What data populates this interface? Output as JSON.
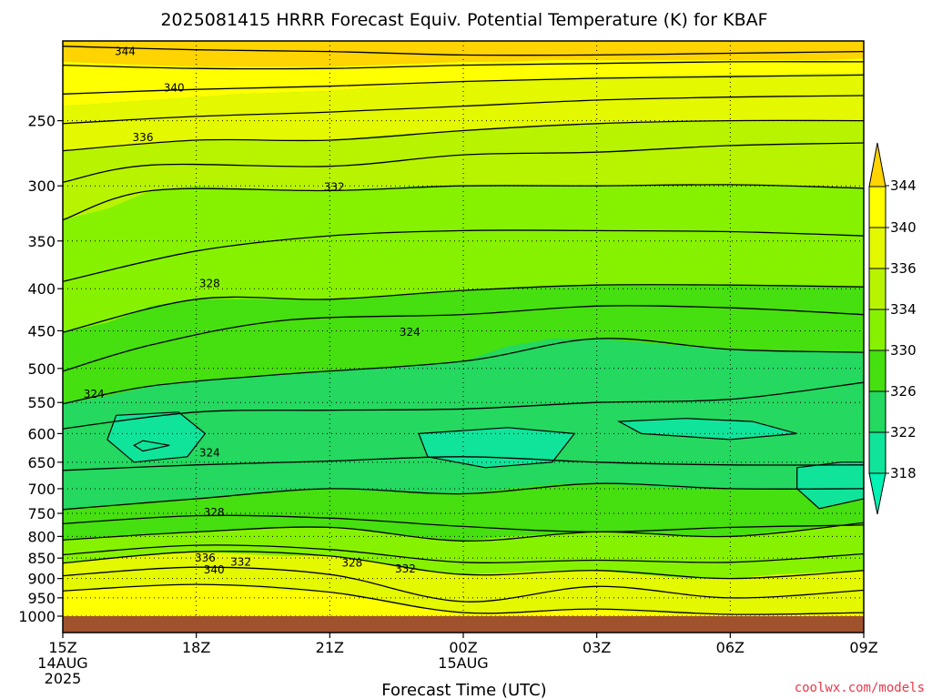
{
  "chart_data": {
    "type": "heatmap",
    "title": "2025081415 HRRR Forecast Equiv. Potential Temperature (K) for KBAF",
    "xlabel": "Forecast Time (UTC)",
    "credit": "coolwx.com/models",
    "x_ticks": [
      {
        "hour": 0,
        "lines": [
          "15Z",
          "14AUG",
          "2025"
        ]
      },
      {
        "hour": 3,
        "lines": [
          "18Z"
        ]
      },
      {
        "hour": 6,
        "lines": [
          "21Z"
        ]
      },
      {
        "hour": 9,
        "lines": [
          "00Z",
          "15AUG"
        ]
      },
      {
        "hour": 12,
        "lines": [
          "03Z"
        ]
      },
      {
        "hour": 15,
        "lines": [
          "06Z"
        ]
      },
      {
        "hour": 18,
        "lines": [
          "09Z"
        ]
      }
    ],
    "xlim_hours": [
      0,
      18
    ],
    "y_ticks": [
      "250",
      "300",
      "350",
      "400",
      "450",
      "500",
      "550",
      "600",
      "650",
      "700",
      "750",
      "800",
      "850",
      "900",
      "950",
      "1000"
    ],
    "y_tick_values": [
      250,
      300,
      350,
      400,
      450,
      500,
      550,
      600,
      650,
      700,
      750,
      800,
      850,
      900,
      950,
      1000
    ],
    "ylim_hpa": [
      200,
      1000
    ],
    "y_scale": "log (pressure, inverted)",
    "grid": "dotted",
    "colorbar": {
      "labels": [
        "318",
        "322",
        "326",
        "330",
        "334",
        "336",
        "340",
        "344"
      ],
      "bounds": [
        318,
        322,
        326,
        330,
        334,
        336,
        340,
        344
      ],
      "extend": "both",
      "colors": {
        "below": "#00f2b4",
        "318_322": "#10e49a",
        "322_326": "#24d860",
        "326_330": "#46df10",
        "330_334": "#86f200",
        "334_336": "#b8f400",
        "336_340": "#e4f800",
        "340_344": "#ffff00",
        "above": "#ffd400"
      }
    },
    "ground_color": "#a0522d",
    "contour_labels": [
      "344",
      "340",
      "336",
      "332",
      "328",
      "324",
      "324",
      "324",
      "328",
      "336",
      "340",
      "332",
      "328",
      "332"
    ],
    "series": [
      {
        "level": 344,
        "x": [
          0,
          3,
          6,
          9,
          12,
          15,
          18
        ],
        "p": [
          203,
          205,
          206,
          208,
          208,
          207,
          206
        ]
      },
      {
        "level": 342,
        "x": [
          0,
          3,
          6,
          9,
          12,
          15,
          18
        ],
        "p": [
          214,
          216,
          216,
          214,
          213,
          212,
          212
        ]
      },
      {
        "level": 340,
        "x": [
          0,
          3,
          6,
          9,
          12,
          15,
          18
        ],
        "p": [
          232,
          229,
          227,
          224,
          222,
          221,
          220
        ]
      },
      {
        "level": 338,
        "x": [
          0,
          3,
          6,
          9,
          12,
          15,
          18
        ],
        "p": [
          252,
          247,
          244,
          240,
          236,
          234,
          233
        ]
      },
      {
        "level": 336,
        "x": [
          0,
          3,
          6,
          9,
          12,
          15,
          18
        ],
        "p": [
          272,
          264,
          264,
          257,
          252,
          250,
          250
        ]
      },
      {
        "level": 334,
        "x": [
          0,
          2,
          6,
          9,
          12,
          15,
          18
        ],
        "p": [
          297,
          283,
          284,
          275,
          273,
          268,
          266
        ]
      },
      {
        "level": 332,
        "x": [
          0,
          2,
          6,
          9,
          12,
          15,
          18
        ],
        "p": [
          330,
          304,
          304,
          300,
          300,
          299,
          302
        ]
      },
      {
        "level": 330,
        "x": [
          0,
          3,
          6,
          9,
          12,
          15,
          18
        ],
        "p": [
          392,
          360,
          345,
          340,
          340,
          341,
          345
        ]
      },
      {
        "level": 328,
        "x": [
          0,
          3,
          6,
          9,
          12,
          15,
          18
        ],
        "p": [
          452,
          412,
          412,
          402,
          396,
          396,
          398
        ]
      },
      {
        "level": 326,
        "x": [
          0,
          2,
          5,
          9,
          12,
          15,
          18
        ],
        "p": [
          504,
          468,
          437,
          430,
          420,
          422,
          430
        ]
      },
      {
        "level": 324,
        "x": [
          0,
          2,
          5,
          9,
          12,
          15,
          18
        ],
        "p": [
          552,
          525,
          508,
          490,
          460,
          474,
          478
        ]
      },
      {
        "level": 322,
        "x": [
          0,
          3,
          6,
          9,
          12,
          15,
          18
        ],
        "p": [
          592,
          565,
          562,
          560,
          550,
          545,
          520
        ]
      },
      {
        "level": 324,
        "x": [
          0,
          3,
          6,
          9,
          12,
          15,
          18
        ],
        "p": [
          665,
          655,
          648,
          640,
          650,
          655,
          655
        ]
      },
      {
        "level": 326,
        "x": [
          0,
          3,
          6,
          9,
          12,
          15,
          18
        ],
        "p": [
          742,
          720,
          700,
          710,
          690,
          700,
          700
        ]
      },
      {
        "level": 328,
        "x": [
          0,
          3,
          6,
          9,
          12,
          15,
          18
        ],
        "p": [
          772,
          755,
          760,
          778,
          790,
          780,
          775
        ]
      },
      {
        "level": 330,
        "x": [
          0,
          3,
          6,
          9,
          12,
          15,
          18
        ],
        "p": [
          808,
          790,
          780,
          810,
          790,
          800,
          770
        ]
      },
      {
        "level": 332,
        "x": [
          0,
          3,
          6,
          9,
          12,
          15,
          18
        ],
        "p": [
          842,
          820,
          830,
          860,
          855,
          860,
          840
        ]
      },
      {
        "level": 336,
        "x": [
          0,
          3,
          6,
          9,
          12,
          15,
          18
        ],
        "p": [
          862,
          835,
          845,
          890,
          880,
          900,
          880
        ]
      },
      {
        "level": 340,
        "x": [
          0,
          3,
          6,
          9,
          12,
          15,
          18
        ],
        "p": [
          893,
          872,
          890,
          960,
          920,
          950,
          930
        ]
      },
      {
        "level": 344,
        "x": [
          0,
          3,
          6,
          9,
          12,
          15,
          18
        ],
        "p": [
          932,
          915,
          935,
          990,
          980,
          995,
          990
        ]
      }
    ],
    "field_columns": {
      "x": [
        0,
        1,
        2,
        3,
        4,
        5,
        6,
        7,
        8,
        9,
        10,
        11,
        12,
        13,
        14,
        15,
        16,
        17,
        18
      ],
      "layers": [
        {
          "level": 345,
          "p": [
            200,
            200,
            200,
            200,
            200,
            200,
            200,
            200,
            200,
            200,
            200,
            200,
            200,
            200,
            200,
            200,
            200,
            200,
            200
          ],
          "p_bottom": [
            212,
            213,
            214,
            215,
            215,
            215,
            215,
            214,
            213,
            212,
            212,
            211,
            211,
            211,
            211,
            211,
            211,
            211,
            210
          ]
        },
        {
          "level": 342,
          "p": [
            212,
            213,
            214,
            215,
            215,
            215,
            215,
            214,
            213,
            212,
            212,
            211,
            211,
            211,
            211,
            211,
            211,
            211,
            210
          ],
          "p_bottom": [
            240,
            238,
            236,
            234,
            232,
            231,
            230,
            228,
            226,
            224,
            223,
            222,
            221,
            221,
            220,
            220,
            220,
            219,
            219
          ]
        },
        {
          "level": 338,
          "p": [
            240,
            238,
            236,
            234,
            232,
            231,
            230,
            228,
            226,
            224,
            223,
            222,
            221,
            221,
            220,
            220,
            220,
            219,
            219
          ],
          "p_bottom": [
            272,
            270,
            267,
            264,
            264,
            264,
            264,
            261,
            259,
            257,
            255,
            253,
            252,
            251,
            251,
            250,
            250,
            250,
            250
          ]
        },
        {
          "level": 335,
          "p": [
            272,
            270,
            267,
            264,
            264,
            264,
            264,
            261,
            259,
            257,
            255,
            253,
            252,
            251,
            251,
            250,
            250,
            250,
            250
          ],
          "p_bottom": [
            330,
            320,
            304,
            300,
            302,
            304,
            304,
            302,
            300,
            300,
            300,
            300,
            300,
            300,
            299,
            299,
            300,
            301,
            302
          ]
        },
        {
          "level": 332,
          "p": [
            330,
            320,
            304,
            300,
            302,
            304,
            304,
            302,
            300,
            300,
            300,
            300,
            300,
            300,
            299,
            299,
            300,
            301,
            302
          ],
          "p_bottom": [
            452,
            440,
            420,
            412,
            412,
            412,
            412,
            410,
            405,
            402,
            400,
            398,
            396,
            396,
            396,
            396,
            397,
            398,
            398
          ]
        },
        {
          "level": 328,
          "p": [
            452,
            440,
            420,
            412,
            412,
            412,
            412,
            410,
            405,
            402,
            400,
            398,
            396,
            396,
            396,
            396,
            397,
            398,
            398
          ],
          "p_bottom": [
            552,
            540,
            525,
            518,
            512,
            508,
            505,
            500,
            495,
            490,
            470,
            460,
            460,
            465,
            470,
            474,
            476,
            477,
            478
          ]
        },
        {
          "level": 324,
          "p": [
            552,
            540,
            525,
            518,
            512,
            508,
            505,
            500,
            495,
            490,
            470,
            460,
            460,
            465,
            470,
            474,
            476,
            477,
            478
          ],
          "p_bottom": [
            742,
            735,
            725,
            720,
            712,
            705,
            700,
            705,
            708,
            710,
            700,
            692,
            690,
            695,
            700,
            700,
            700,
            700,
            700
          ]
        },
        {
          "level": 326,
          "p": [
            742,
            735,
            725,
            720,
            712,
            705,
            700,
            705,
            708,
            710,
            700,
            692,
            690,
            695,
            700,
            700,
            700,
            700,
            700
          ],
          "p_bottom": [
            808,
            800,
            795,
            790,
            785,
            780,
            780,
            790,
            800,
            810,
            800,
            795,
            790,
            795,
            800,
            800,
            790,
            780,
            770
          ]
        },
        {
          "level": 331,
          "p": [
            808,
            800,
            795,
            790,
            785,
            780,
            780,
            790,
            800,
            810,
            800,
            795,
            790,
            795,
            800,
            800,
            790,
            780,
            770
          ],
          "p_bottom": [
            862,
            850,
            840,
            835,
            840,
            845,
            845,
            860,
            880,
            890,
            885,
            880,
            880,
            890,
            900,
            900,
            890,
            885,
            880
          ]
        },
        {
          "level": 338,
          "p": [
            862,
            850,
            840,
            835,
            840,
            845,
            845,
            860,
            880,
            890,
            885,
            880,
            880,
            890,
            900,
            900,
            890,
            885,
            880
          ],
          "p_bottom": [
            932,
            925,
            918,
            915,
            920,
            930,
            935,
            955,
            975,
            990,
            985,
            980,
            980,
            990,
            995,
            995,
            992,
            990,
            990
          ]
        },
        {
          "level": 342,
          "p": [
            932,
            925,
            918,
            915,
            920,
            930,
            935,
            955,
            975,
            990,
            985,
            980,
            980,
            990,
            995,
            995,
            992,
            990,
            990
          ],
          "p_bottom": [
            1000,
            1000,
            1000,
            1000,
            1000,
            1000,
            1000,
            1000,
            1000,
            1000,
            1000,
            1000,
            1000,
            1000,
            1000,
            1000,
            1000,
            1000,
            1000
          ]
        }
      ]
    },
    "cool_pockets": [
      {
        "level": 320,
        "x": [
          1.2,
          2.6,
          3.2,
          2.8,
          1.6,
          1.0,
          1.2
        ],
        "p": [
          570,
          565,
          600,
          640,
          650,
          610,
          570
        ]
      },
      {
        "level": 318,
        "x": [
          1.8,
          2.4,
          1.8,
          1.6,
          1.8
        ],
        "p": [
          612,
          620,
          630,
          620,
          612
        ]
      },
      {
        "level": 320,
        "x": [
          8.0,
          10.0,
          11.5,
          11.0,
          9.5,
          8.2,
          8.0
        ],
        "p": [
          600,
          590,
          600,
          650,
          660,
          640,
          600
        ]
      },
      {
        "level": 320,
        "x": [
          12.5,
          14.0,
          15.5,
          16.5,
          15.0,
          13.0,
          12.5
        ],
        "p": [
          580,
          575,
          580,
          600,
          610,
          600,
          580
        ]
      },
      {
        "level": 318,
        "x": [
          16.5,
          17.5,
          18.0,
          18.0,
          17.0,
          16.5
        ],
        "p": [
          660,
          650,
          650,
          720,
          740,
          700
        ]
      }
    ]
  }
}
